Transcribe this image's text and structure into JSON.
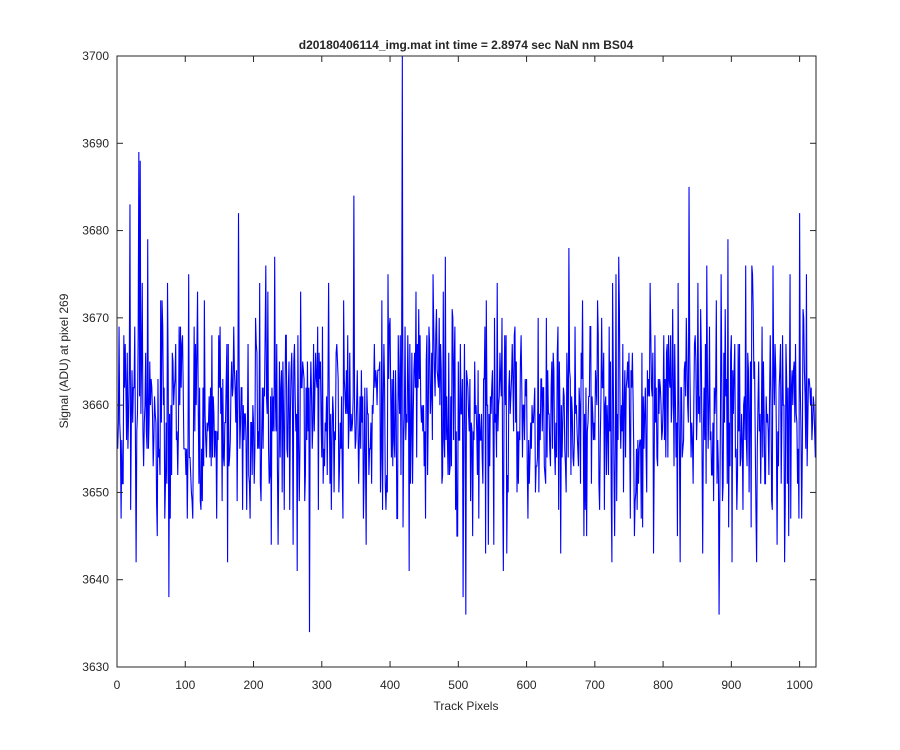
{
  "chart_data": {
    "type": "line",
    "title": "d20180406114_img.mat int time = 2.8974 sec  NaN nm BS04",
    "xlabel": "Track Pixels",
    "ylabel": "Signal (ADU) at pixel 269",
    "xlim": [
      0,
      1024
    ],
    "ylim": [
      3630,
      3700
    ],
    "xticks": [
      0,
      100,
      200,
      300,
      400,
      500,
      600,
      700,
      800,
      900,
      1000
    ],
    "yticks": [
      3630,
      3640,
      3650,
      3660,
      3670,
      3680,
      3690,
      3700
    ],
    "grid": false,
    "legend": "none",
    "series": [
      {
        "color": "#0000ff",
        "x_start": 1,
        "x_step": 1,
        "count": 1024,
        "mean": 3659,
        "spread": 6.5,
        "noise_seed": 20180406,
        "values_note": "",
        "peaks": [
          {
            "x": 19,
            "y": 3683
          },
          {
            "x": 28,
            "y": 3642
          },
          {
            "x": 32,
            "y": 3689
          },
          {
            "x": 34,
            "y": 3688
          },
          {
            "x": 45,
            "y": 3679
          },
          {
            "x": 76,
            "y": 3638
          },
          {
            "x": 105,
            "y": 3675
          },
          {
            "x": 178,
            "y": 3682
          },
          {
            "x": 231,
            "y": 3677
          },
          {
            "x": 264,
            "y": 3641
          },
          {
            "x": 282,
            "y": 3634
          },
          {
            "x": 347,
            "y": 3684
          },
          {
            "x": 397,
            "y": 3675
          },
          {
            "x": 418,
            "y": 3700
          },
          {
            "x": 428,
            "y": 3641
          },
          {
            "x": 481,
            "y": 3677
          },
          {
            "x": 507,
            "y": 3638
          },
          {
            "x": 511,
            "y": 3636
          },
          {
            "x": 566,
            "y": 3641
          },
          {
            "x": 662,
            "y": 3678
          },
          {
            "x": 735,
            "y": 3677
          },
          {
            "x": 838,
            "y": 3685
          },
          {
            "x": 882,
            "y": 3636
          },
          {
            "x": 895,
            "y": 3679
          },
          {
            "x": 1000,
            "y": 3682
          },
          {
            "x": 1010,
            "y": 3675
          }
        ]
      }
    ]
  }
}
